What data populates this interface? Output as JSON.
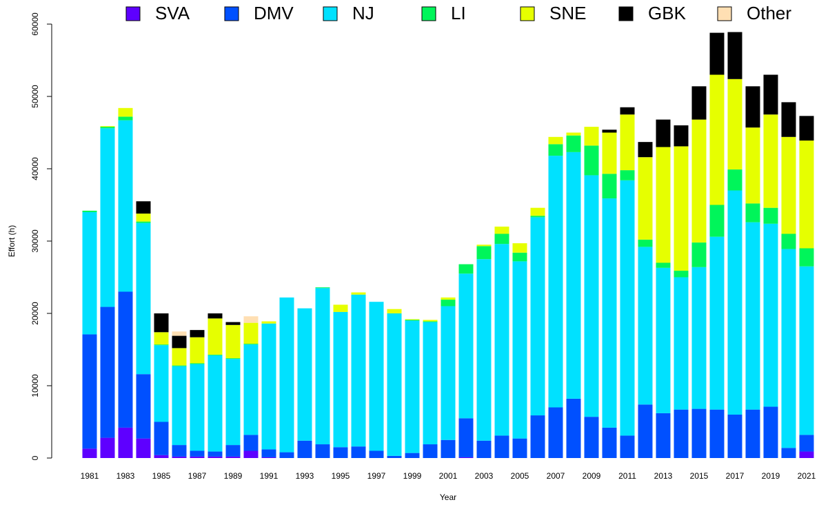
{
  "chart_data": {
    "type": "stacked_bar",
    "x_label": "Year",
    "y_label": "Effort (h)",
    "categories": [
      "1981",
      null,
      "1983",
      null,
      "1985",
      null,
      "1987",
      null,
      "1989",
      null,
      "1991",
      null,
      "1993",
      null,
      "1995",
      null,
      "1997",
      null,
      "1999",
      null,
      "2001",
      null,
      "2003",
      null,
      "2005",
      null,
      "2007",
      null,
      "2009",
      null,
      "2011",
      null,
      "2013",
      null,
      "2015",
      null,
      "2017",
      null,
      "2019",
      null,
      "2021"
    ],
    "series": [
      {
        "name": "SVA",
        "color": "#5e00ff",
        "values": [
          1300,
          2800,
          4200,
          2700,
          400,
          200,
          200,
          200,
          200,
          1000,
          100,
          0,
          0,
          0,
          0,
          0,
          0,
          0,
          0,
          0,
          0,
          100,
          0,
          0,
          0,
          0,
          0,
          0,
          0,
          0,
          0,
          0,
          0,
          0,
          0,
          0,
          0,
          0,
          0,
          0,
          900
        ]
      },
      {
        "name": "DMV",
        "color": "#0050ff",
        "values": [
          15800,
          18100,
          18800,
          8900,
          4600,
          1600,
          800,
          700,
          1600,
          2200,
          1100,
          800,
          2400,
          1900,
          1500,
          1600,
          1000,
          300,
          700,
          1900,
          2500,
          5400,
          2400,
          3100,
          2700,
          5900,
          7000,
          8200,
          5700,
          4200,
          3100,
          7400,
          6200,
          6700,
          6800,
          6700,
          6000,
          6700,
          7100,
          1400,
          2300
        ]
      },
      {
        "name": "NJ",
        "color": "#00e1ff",
        "values": [
          16900,
          24700,
          23700,
          20900,
          10600,
          10900,
          12000,
          13300,
          11900,
          12500,
          17400,
          21400,
          18300,
          21600,
          18700,
          21000,
          20600,
          19700,
          18300,
          16900,
          18500,
          20000,
          25100,
          26500,
          24500,
          27400,
          34800,
          34100,
          33400,
          31700,
          35300,
          21800,
          20100,
          18300,
          19600,
          23900,
          31000,
          25900,
          25300,
          27500,
          23300
        ]
      },
      {
        "name": "LI",
        "color": "#00f55a",
        "values": [
          200,
          200,
          500,
          200,
          100,
          100,
          100,
          100,
          100,
          100,
          0,
          0,
          0,
          100,
          0,
          0,
          0,
          0,
          100,
          100,
          900,
          1300,
          1800,
          1400,
          1200,
          200,
          1600,
          2300,
          4100,
          3400,
          1400,
          1000,
          700,
          900,
          3400,
          4400,
          2900,
          2600,
          2200,
          2100,
          2500
        ]
      },
      {
        "name": "SNE",
        "color": "#e6ff00",
        "values": [
          0,
          100,
          1200,
          1100,
          1700,
          2400,
          3600,
          5000,
          4600,
          2900,
          300,
          0,
          0,
          0,
          1000,
          300,
          0,
          600,
          100,
          200,
          300,
          0,
          200,
          1000,
          1300,
          1100,
          1000,
          400,
          2600,
          5700,
          7700,
          11400,
          16000,
          17200,
          17000,
          18000,
          12500,
          10500,
          12900,
          13400,
          14900
        ]
      },
      {
        "name": "GBK",
        "color": "#000000",
        "values": [
          0,
          0,
          0,
          1700,
          2600,
          1700,
          1000,
          700,
          400,
          0,
          0,
          0,
          0,
          0,
          0,
          0,
          0,
          0,
          0,
          0,
          0,
          0,
          0,
          0,
          0,
          0,
          0,
          0,
          0,
          400,
          1000,
          2100,
          3800,
          2900,
          4600,
          5800,
          6500,
          5700,
          5500,
          4800,
          3400
        ]
      },
      {
        "name": "Other",
        "color": "#ffdfb3",
        "values": [
          0,
          0,
          0,
          0,
          0,
          600,
          0,
          0,
          0,
          900,
          0,
          0,
          0,
          0,
          0,
          0,
          0,
          0,
          0,
          0,
          0,
          0,
          0,
          0,
          0,
          0,
          0,
          0,
          0,
          0,
          0,
          0,
          0,
          0,
          0,
          0,
          0,
          0,
          0,
          0,
          0
        ]
      }
    ],
    "ylim": [
      0,
      60000
    ],
    "yticks": [
      0,
      10000,
      20000,
      30000,
      40000,
      50000,
      60000
    ],
    "legend": "top"
  }
}
